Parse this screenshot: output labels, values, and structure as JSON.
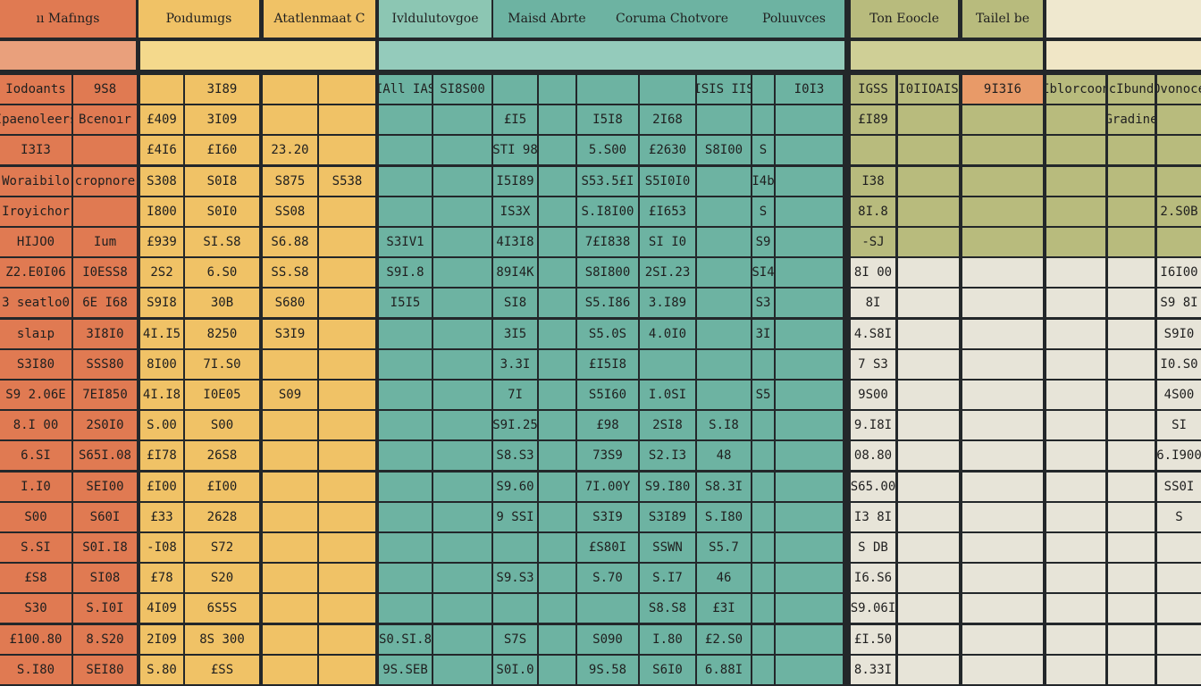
{
  "header": [
    "ıı Mafıngs",
    "Poıdumıgs",
    "Atatlenmaat C",
    "Ivldulutovgoe",
    "Maisd Abrte",
    "Coruma Chotvore",
    "Poluuvces",
    "Ton Eoocle",
    "Tailel be"
  ],
  "table": {
    "rows": [
      [
        "Iodoants",
        "9S8",
        null,
        "3I89",
        null,
        null,
        "IAll IAS",
        "SI8S00",
        null,
        null,
        null,
        null,
        "ISIS IIS",
        null,
        "I0I3",
        "IGSS",
        "I0IIOAIS",
        "9I3I6",
        "Iblorcoon",
        "acIbunde",
        "Ovonoce"
      ],
      [
        "Ipaenoleers",
        "Bcenoır",
        "£409",
        "3I09",
        null,
        null,
        null,
        null,
        "£I5",
        null,
        "I5I8",
        "2I68",
        null,
        null,
        null,
        "£I89",
        null,
        null,
        null,
        "Gradine",
        null
      ],
      [
        "I3I3",
        null,
        "£4I6",
        "£I60",
        "23.20",
        null,
        null,
        null,
        "STI 98",
        null,
        "5.S00",
        "£2630",
        "S8I00",
        "S",
        null,
        null,
        null,
        null,
        null,
        null,
        null
      ],
      [
        "Woraibilo",
        "cropnore",
        "S308",
        "S0I8",
        "S875",
        "S538",
        null,
        null,
        "I5I89",
        null,
        "S53.5£I",
        "S5I0I0",
        null,
        "I4b",
        null,
        "I38",
        null,
        null,
        null,
        null,
        null
      ],
      [
        "Iroyichor",
        null,
        "I800",
        "S0I0",
        "SS08",
        null,
        null,
        null,
        "IS3X",
        null,
        "S.I8I00",
        "£I653",
        null,
        "S",
        null,
        "8I.8",
        null,
        null,
        null,
        null,
        "2.S0B"
      ],
      [
        "HIJO0",
        "Ium",
        "£939",
        "SI.S8",
        "S6.88",
        null,
        "S3IV1",
        null,
        "4I3I8",
        null,
        "7£I838",
        "SI I0",
        null,
        "S9",
        null,
        "-SJ",
        null,
        null,
        null,
        null,
        null
      ],
      [
        "Z2.E0I06",
        "I0ESS8",
        "2S2",
        "6.S0",
        "SS.S8",
        null,
        "S9I.8",
        null,
        "89I4K",
        null,
        "S8I800",
        "2SI.23",
        null,
        "SI4",
        null,
        "8I 00",
        null,
        null,
        null,
        null,
        "I6I00"
      ],
      [
        "3 seatlo0",
        "6E I68",
        "S9I8",
        "30B",
        "S680",
        null,
        "I5I5",
        null,
        "SI8",
        null,
        "S5.I86",
        "3.I89",
        null,
        "S3",
        null,
        "8I",
        null,
        null,
        null,
        null,
        "S9 8I"
      ],
      [
        "slaıp",
        "3I8I0",
        "4I.I5",
        "8250",
        "S3I9",
        null,
        null,
        null,
        "3I5",
        null,
        "S5.0S",
        "4.0I0",
        null,
        "3I",
        null,
        "4.S8I",
        null,
        null,
        null,
        null,
        "S9I0"
      ],
      [
        "S3I80",
        "SSS80",
        "8I00",
        "7I.S0",
        null,
        null,
        null,
        null,
        "3.3I",
        null,
        "£I5I8",
        null,
        null,
        null,
        null,
        "7 S3",
        null,
        null,
        null,
        null,
        "I0.S0"
      ],
      [
        "S9 2.06E",
        "7EI850",
        "4I.I8",
        "I0E05",
        "S09",
        null,
        null,
        null,
        "7I",
        null,
        "S5I60",
        "I.0SI",
        null,
        "S5",
        null,
        "9S00",
        null,
        null,
        null,
        null,
        "4S00"
      ],
      [
        "8.I 00",
        "2S0I0",
        "S.00",
        "S00",
        null,
        null,
        null,
        null,
        "S9I.25",
        null,
        "£98",
        "2SI8",
        "S.I8",
        null,
        null,
        "9.I8I",
        null,
        null,
        null,
        null,
        "SI"
      ],
      [
        "6.SI",
        "S65I.08",
        "£I78",
        "26S8",
        null,
        null,
        null,
        null,
        "S8.S3",
        null,
        "73S9",
        "S2.I3",
        "48",
        null,
        null,
        "08.80",
        null,
        null,
        null,
        null,
        "6.I900"
      ],
      [
        "I.I0",
        "SEI00",
        "£I00",
        "£I00",
        null,
        null,
        null,
        null,
        "S9.60",
        null,
        "7I.00Y",
        "S9.I80",
        "S8.3I",
        null,
        null,
        "S65.00",
        null,
        null,
        null,
        null,
        "SS0I"
      ],
      [
        "S00",
        "S60I",
        "£33",
        "2628",
        null,
        null,
        null,
        null,
        "9 SSI",
        null,
        "S3I9",
        "S3I89",
        "S.I80",
        null,
        null,
        "I3 8I",
        null,
        null,
        null,
        null,
        "S"
      ],
      [
        "S.SI",
        "S0I.I8",
        "-I08",
        "S72",
        null,
        null,
        null,
        null,
        null,
        null,
        "£S80I",
        "SSWN",
        "S5.7",
        null,
        null,
        "S DB",
        null,
        null,
        null,
        null,
        null
      ],
      [
        "£S8",
        "SI08",
        "£78",
        "S20",
        null,
        null,
        null,
        null,
        "S9.S3",
        null,
        "S.70",
        "S.I7",
        "46",
        null,
        null,
        "I6.S6",
        null,
        null,
        null,
        null,
        null
      ],
      [
        "S30",
        "S.I0I",
        "4I09",
        "6S5S",
        null,
        null,
        null,
        null,
        null,
        null,
        null,
        "S8.S8",
        "£3I",
        null,
        null,
        "S9.06I",
        null,
        null,
        null,
        null,
        null
      ],
      [
        "£100.80",
        "8.S20",
        "2I09",
        "8S 300",
        null,
        null,
        "S0.SI.8",
        null,
        "S7S",
        null,
        "S090",
        "I.80",
        "£2.S0",
        null,
        null,
        "£I.50",
        null,
        null,
        null,
        null,
        null
      ],
      [
        "S.I80",
        "SEI80",
        "S.80",
        "£SS",
        null,
        null,
        "9S.SEB",
        null,
        "S0I.0",
        null,
        "9S.58",
        "S6I0",
        "6.88I",
        null,
        null,
        "8.33I",
        null,
        null,
        null,
        null,
        null
      ]
    ]
  }
}
